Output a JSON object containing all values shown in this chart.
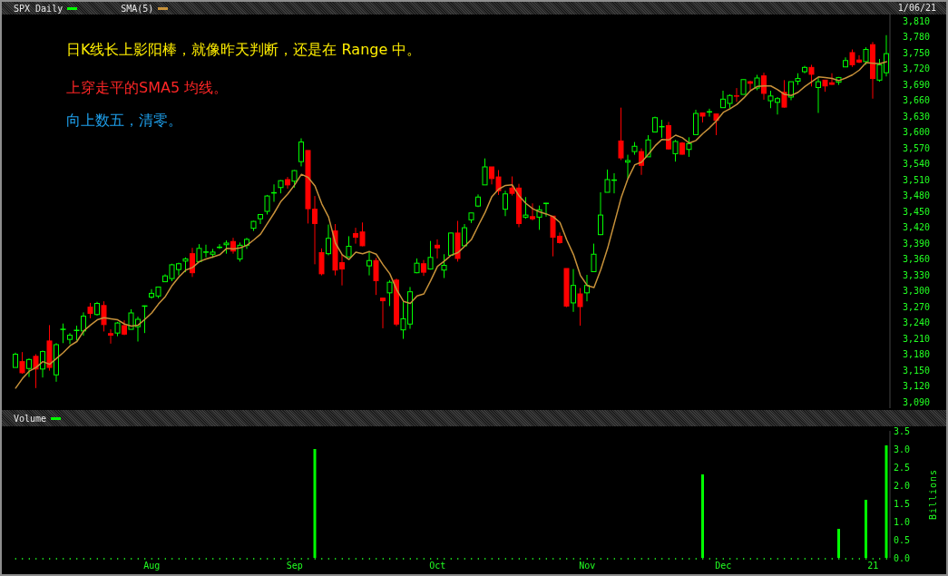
{
  "chart_data": [
    {
      "type": "candlestick",
      "subtitle": "1/06/21",
      "annotations": [
        "日K线长上影阳棒，就像昨天判断，还是在 Range 中。",
        "上穿走平的SMA5 均线。",
        "向上数五，清零。"
      ],
      "categories": [
        null,
        null,
        null,
        null,
        null,
        null,
        null,
        null,
        null,
        null,
        null,
        null,
        null,
        null,
        null,
        null,
        null,
        null,
        null,
        null,
        null,
        null,
        null,
        null,
        null,
        null,
        null,
        null,
        null,
        null,
        null,
        null,
        null,
        null,
        null,
        null,
        null,
        null,
        null,
        null,
        null,
        null,
        null,
        null,
        null,
        null,
        null,
        null,
        null,
        null,
        null,
        null,
        null,
        null,
        null,
        null,
        null,
        null,
        null,
        null,
        null,
        null,
        null,
        null,
        null,
        null,
        null,
        null,
        null,
        null,
        null,
        null,
        null,
        null,
        null,
        null,
        null,
        null,
        null,
        null,
        null,
        null,
        null,
        null,
        null,
        null,
        null,
        null,
        null,
        null,
        null,
        null,
        null,
        null,
        null,
        null,
        null,
        null,
        null,
        null,
        null,
        null,
        null,
        null,
        null,
        null,
        null,
        null,
        null,
        null,
        null,
        null,
        null,
        null,
        null,
        null,
        null,
        null,
        null,
        null,
        null,
        null,
        null,
        null,
        null,
        null,
        null,
        null,
        null
      ],
      "series": [
        {
          "name": "SPX Daily",
          "color": "#00ff00",
          "colors": [
            "#00ff00",
            "#ff0000",
            "#00ff00",
            "#ff0000",
            "#00ff00",
            "#ff0000",
            "#00ff00",
            "#00ff00",
            "#00ff00",
            "#00ff00",
            "#00ff00",
            "#ff0000",
            "#00ff00",
            "#ff0000",
            "#ff0000",
            "#00ff00",
            "#ff0000",
            "#00ff00",
            "#00ff00",
            "#00ff00",
            "#00ff00",
            "#00ff00",
            "#00ff00",
            "#00ff00",
            "#00ff00",
            "#00ff00",
            "#ff0000",
            "#00ff00",
            "#00ff00",
            "#00ff00",
            "#00ff00",
            "#00ff00",
            "#ff0000",
            "#00ff00",
            "#00ff00",
            "#00ff00",
            "#00ff00",
            "#00ff00",
            "#00ff00",
            "#00ff00",
            "#ff0000",
            "#00ff00",
            "#00ff00",
            "#ff0000",
            "#ff0000",
            "#ff0000",
            "#00ff00",
            "#ff0000",
            "#ff0000",
            "#00ff00",
            "#ff0000",
            "#ff0000",
            "#00ff00",
            "#ff0000",
            "#ff0000",
            "#00ff00",
            "#ff0000",
            "#00ff00",
            "#00ff00",
            "#00ff00",
            "#ff0000",
            "#00ff00",
            "#ff0000",
            "#00ff00",
            "#00ff00",
            "#ff0000",
            "#00ff00",
            "#00ff00",
            "#00ff00",
            "#00ff00",
            "#ff0000",
            "#ff0000",
            "#00ff00",
            "#ff0000",
            "#ff0000",
            "#00ff00",
            "#ff0000",
            "#00ff00",
            "#00ff00",
            "#ff0000",
            "#ff0000",
            "#ff0000",
            "#00ff00",
            "#ff0000",
            "#00ff00",
            "#00ff00",
            "#00ff00",
            "#00ff00",
            "#00ff00",
            "#ff0000",
            "#00ff00",
            "#00ff00",
            "#ff0000",
            "#00ff00",
            "#00ff00",
            "#00ff00",
            "#ff0000",
            "#00ff00",
            "#ff0000",
            "#00ff00",
            "#00ff00",
            "#ff0000",
            "#00ff00",
            "#ff0000",
            "#00ff00",
            "#00ff00",
            "#ff0000",
            "#00ff00",
            "#ff0000",
            "#00ff00",
            "#ff0000",
            "#00ff00",
            "#00ff00",
            "#ff0000",
            "#00ff00",
            "#00ff00",
            "#00ff00",
            "#ff0000",
            "#00ff00",
            "#ff0000",
            "#ff0000",
            "#00ff00",
            "#00ff00",
            "#ff0000",
            "#ff0000",
            "#00ff00",
            "#ff0000",
            "#00ff00",
            "#00ff00"
          ],
          "ohlc": [
            [
              3155,
              3183,
              3155,
              3180
            ],
            [
              3166,
              3184,
              3143,
              3145
            ],
            [
              3153,
              3172,
              3137,
              3170
            ],
            [
              3176,
              3180,
              3116,
              3152
            ],
            [
              3152,
              3187,
              3136,
              3185
            ],
            [
              3205,
              3235,
              3149,
              3155
            ],
            [
              3141,
              3201,
              3128,
              3198
            ],
            [
              3226,
              3238,
              3201,
              3227
            ],
            [
              3208,
              3220,
              3199,
              3216
            ],
            [
              3224,
              3234,
              3206,
              3225
            ],
            [
              3224,
              3259,
              3215,
              3252
            ],
            [
              3269,
              3277,
              3248,
              3257
            ],
            [
              3255,
              3279,
              3253,
              3276
            ],
            [
              3272,
              3280,
              3223,
              3236
            ],
            [
              3219,
              3227,
              3200,
              3216
            ],
            [
              3220,
              3241,
              3214,
              3239
            ],
            [
              3234,
              3244,
              3216,
              3218
            ],
            [
              3227,
              3265,
              3227,
              3258
            ],
            [
              3232,
              3251,
              3204,
              3246
            ],
            [
              3270,
              3272,
              3220,
              3271
            ],
            [
              3288,
              3303,
              3285,
              3295
            ],
            [
              3290,
              3307,
              3286,
              3307
            ],
            [
              3317,
              3331,
              3317,
              3328
            ],
            [
              3323,
              3351,
              3318,
              3349
            ],
            [
              3340,
              3353,
              3329,
              3351
            ],
            [
              3356,
              3363,
              3335,
              3360
            ],
            [
              3370,
              3381,
              3326,
              3334
            ],
            [
              3355,
              3388,
              3355,
              3380
            ],
            [
              3373,
              3387,
              3363,
              3373
            ],
            [
              3369,
              3379,
              3362,
              3373
            ],
            [
              3381,
              3388,
              3379,
              3382
            ],
            [
              3387,
              3395,
              3370,
              3390
            ],
            [
              3393,
              3400,
              3370,
              3375
            ],
            [
              3360,
              3391,
              3355,
              3386
            ],
            [
              3386,
              3400,
              3379,
              3397
            ],
            [
              3418,
              3432,
              3413,
              3431
            ],
            [
              3436,
              3444,
              3426,
              3444
            ],
            [
              3450,
              3481,
              3444,
              3479
            ],
            [
              3485,
              3501,
              3468,
              3485
            ],
            [
              3495,
              3509,
              3484,
              3508
            ],
            [
              3510,
              3515,
              3493,
              3500
            ],
            [
              3507,
              3528,
              3495,
              3527
            ],
            [
              3544,
              3588,
              3535,
              3581
            ],
            [
              3565,
              3565,
              3427,
              3455
            ],
            [
              3454,
              3479,
              3350,
              3427
            ],
            [
              3372,
              3380,
              3329,
              3332
            ],
            [
              3370,
              3425,
              3367,
              3399
            ],
            [
              3413,
              3426,
              3329,
              3339
            ],
            [
              3353,
              3369,
              3310,
              3341
            ],
            [
              3364,
              3403,
              3364,
              3384
            ],
            [
              3408,
              3419,
              3389,
              3401
            ],
            [
              3411,
              3429,
              3384,
              3385
            ],
            [
              3347,
              3375,
              3329,
              3357
            ],
            [
              3357,
              3362,
              3292,
              3319
            ],
            [
              3286,
              3286,
              3229,
              3281
            ],
            [
              3296,
              3320,
              3271,
              3316
            ],
            [
              3320,
              3323,
              3233,
              3237
            ],
            [
              3226,
              3279,
              3209,
              3247
            ],
            [
              3237,
              3307,
              3228,
              3298
            ],
            [
              3334,
              3361,
              3333,
              3352
            ],
            [
              3351,
              3358,
              3328,
              3335
            ],
            [
              3341,
              3394,
              3340,
              3363
            ],
            [
              3386,
              3397,
              3361,
              3381
            ],
            [
              3339,
              3369,
              3324,
              3348
            ],
            [
              3367,
              3410,
              3367,
              3409
            ],
            [
              3409,
              3432,
              3355,
              3361
            ],
            [
              3385,
              3426,
              3385,
              3419
            ],
            [
              3434,
              3447,
              3428,
              3447
            ],
            [
              3460,
              3482,
              3458,
              3477
            ],
            [
              3500,
              3550,
              3500,
              3534
            ],
            [
              3534,
              3534,
              3501,
              3512
            ],
            [
              3515,
              3528,
              3481,
              3489
            ],
            [
              3454,
              3489,
              3441,
              3483
            ],
            [
              3494,
              3516,
              3480,
              3484
            ],
            [
              3494,
              3502,
              3420,
              3427
            ],
            [
              3439,
              3477,
              3436,
              3443
            ],
            [
              3440,
              3465,
              3433,
              3436
            ],
            [
              3439,
              3461,
              3415,
              3453
            ],
            [
              3465,
              3466,
              3440,
              3465
            ],
            [
              3441,
              3441,
              3365,
              3401
            ],
            [
              3403,
              3410,
              3389,
              3391
            ],
            [
              3342,
              3342,
              3269,
              3271
            ],
            [
              3277,
              3341,
              3260,
              3310
            ],
            [
              3294,
              3305,
              3234,
              3270
            ],
            [
              3296,
              3330,
              3280,
              3310
            ],
            [
              3336,
              3389,
              3336,
              3369
            ],
            [
              3406,
              3486,
              3405,
              3443
            ],
            [
              3486,
              3529,
              3486,
              3510
            ],
            [
              3508,
              3522,
              3484,
              3509
            ],
            [
              3583,
              3646,
              3547,
              3551
            ],
            [
              3543,
              3557,
              3512,
              3546
            ],
            [
              3563,
              3581,
              3557,
              3573
            ],
            [
              3563,
              3569,
              3519,
              3537
            ],
            [
              3553,
              3594,
              3553,
              3585
            ],
            [
              3600,
              3629,
              3600,
              3627
            ],
            [
              3610,
              3623,
              3589,
              3610
            ],
            [
              3612,
              3619,
              3567,
              3568
            ],
            [
              3559,
              3585,
              3544,
              3582
            ],
            [
              3579,
              3581,
              3557,
              3558
            ],
            [
              3567,
              3590,
              3553,
              3578
            ],
            [
              3595,
              3642,
              3595,
              3635
            ],
            [
              3636,
              3636,
              3618,
              3630
            ],
            [
              3638,
              3644,
              3629,
              3638
            ],
            [
              3634,
              3634,
              3594,
              3622
            ],
            [
              3646,
              3678,
              3646,
              3662
            ],
            [
              3654,
              3671,
              3645,
              3669
            ],
            [
              3668,
              3683,
              3657,
              3667
            ],
            [
              3671,
              3699,
              3671,
              3699
            ],
            [
              3695,
              3697,
              3679,
              3692
            ],
            [
              3683,
              3708,
              3679,
              3702
            ],
            [
              3706,
              3712,
              3661,
              3673
            ],
            [
              3659,
              3678,
              3645,
              3668
            ],
            [
              3656,
              3666,
              3633,
              3663
            ],
            [
              3675,
              3698,
              3646,
              3647
            ],
            [
              3666,
              3695,
              3660,
              3695
            ],
            [
              3696,
              3711,
              3689,
              3701
            ],
            [
              3714,
              3725,
              3711,
              3722
            ],
            [
              3722,
              3727,
              3686,
              3709
            ],
            [
              3684,
              3703,
              3636,
              3695
            ],
            [
              3698,
              3698,
              3676,
              3687
            ],
            [
              3693,
              3711,
              3689,
              3690
            ],
            [
              3694,
              3704,
              3689,
              3703
            ],
            [
              3723,
              3741,
              3723,
              3735
            ],
            [
              3750,
              3756,
              3723,
              3727
            ],
            [
              3736,
              3745,
              3730,
              3732
            ],
            [
              3733,
              3760,
              3727,
              3756
            ],
            [
              3765,
              3770,
              3663,
              3701
            ],
            [
              3698,
              3738,
              3695,
              3727
            ],
            [
              3712,
              3783,
              3705,
              3748
            ]
          ]
        },
        {
          "name": "SMA(5)",
          "type": "line",
          "color": "#c8923a",
          "values": [
            3116,
            3134,
            3148,
            3155,
            3166,
            3161,
            3172,
            3183,
            3196,
            3204,
            3224,
            3235,
            3245,
            3249,
            3247,
            3245,
            3237,
            3233,
            3235,
            3246,
            3258,
            3275,
            3289,
            3310,
            3326,
            3339,
            3344,
            3355,
            3360,
            3364,
            3368,
            3380,
            3379,
            3381,
            3386,
            3396,
            3407,
            3427,
            3447,
            3469,
            3483,
            3500,
            3520,
            3514,
            3498,
            3464,
            3439,
            3390,
            3368,
            3359,
            3373,
            3370,
            3374,
            3369,
            3349,
            3332,
            3302,
            3280,
            3276,
            3290,
            3294,
            3319,
            3346,
            3356,
            3367,
            3372,
            3384,
            3397,
            3423,
            3448,
            3478,
            3492,
            3499,
            3500,
            3479,
            3465,
            3455,
            3449,
            3445,
            3440,
            3429,
            3396,
            3368,
            3329,
            3310,
            3306,
            3340,
            3380,
            3428,
            3476,
            3512,
            3538,
            3543,
            3558,
            3574,
            3586,
            3585,
            3594,
            3589,
            3579,
            3584,
            3597,
            3608,
            3621,
            3637,
            3644,
            3652,
            3664,
            3678,
            3686,
            3687,
            3687,
            3680,
            3671,
            3669,
            3675,
            3686,
            3695,
            3704,
            3703,
            3701,
            3697,
            3702,
            3708,
            3717,
            3731,
            3730,
            3729,
            3733
          ]
        }
      ],
      "ylim": [
        3078,
        3822
      ],
      "yticks": [
        {
          "value": 3090,
          "label": "3,090"
        },
        {
          "value": 3120,
          "label": "3,120"
        },
        {
          "value": 3150,
          "label": "3,150"
        },
        {
          "value": 3180,
          "label": "3,180"
        },
        {
          "value": 3210,
          "label": "3,210"
        },
        {
          "value": 3240,
          "label": "3,240"
        },
        {
          "value": 3270,
          "label": "3,270"
        },
        {
          "value": 3300,
          "label": "3,300"
        },
        {
          "value": 3330,
          "label": "3,330"
        },
        {
          "value": 3360,
          "label": "3,360"
        },
        {
          "value": 3390,
          "label": "3,390"
        },
        {
          "value": 3420,
          "label": "3,420"
        },
        {
          "value": 3450,
          "label": "3,450"
        },
        {
          "value": 3480,
          "label": "3,480"
        },
        {
          "value": 3510,
          "label": "3,510"
        },
        {
          "value": 3540,
          "label": "3,540"
        },
        {
          "value": 3570,
          "label": "3,570"
        },
        {
          "value": 3600,
          "label": "3,600"
        },
        {
          "value": 3630,
          "label": "3,630"
        },
        {
          "value": 3660,
          "label": "3,660"
        },
        {
          "value": 3690,
          "label": "3,690"
        },
        {
          "value": 3720,
          "label": "3,720"
        },
        {
          "value": 3750,
          "label": "3,750"
        },
        {
          "value": 3780,
          "label": "3,780"
        },
        {
          "value": 3810,
          "label": "3,810"
        }
      ],
      "legend": "top left",
      "tick_labels": "y"
    },
    {
      "type": "bar",
      "ylabel": "Billions",
      "categories": [
        null,
        null,
        null,
        null,
        null,
        null,
        null,
        null,
        null,
        null,
        null,
        null,
        null,
        null,
        null,
        null,
        null,
        null,
        null,
        null,
        "Aug",
        null,
        null,
        null,
        null,
        null,
        null,
        null,
        null,
        null,
        null,
        null,
        null,
        null,
        null,
        null,
        null,
        null,
        null,
        null,
        null,
        "Sep",
        null,
        null,
        null,
        null,
        null,
        null,
        null,
        null,
        null,
        null,
        null,
        null,
        null,
        null,
        null,
        null,
        null,
        null,
        null,
        null,
        "Oct",
        null,
        null,
        null,
        null,
        null,
        null,
        null,
        null,
        null,
        null,
        null,
        null,
        null,
        null,
        null,
        null,
        null,
        null,
        null,
        null,
        null,
        "Nov",
        null,
        null,
        null,
        null,
        null,
        null,
        null,
        null,
        null,
        null,
        null,
        null,
        null,
        null,
        null,
        null,
        null,
        null,
        null,
        "Dec",
        null,
        null,
        null,
        null,
        null,
        null,
        null,
        null,
        null,
        null,
        null,
        null,
        null,
        null,
        null,
        null,
        null,
        null,
        null,
        null,
        null,
        "21",
        null,
        null
      ],
      "series": [
        {
          "name": "Volume",
          "color": "#00ff00",
          "values": [
            null,
            null,
            null,
            null,
            null,
            null,
            null,
            null,
            null,
            null,
            null,
            null,
            null,
            null,
            null,
            null,
            null,
            null,
            null,
            null,
            null,
            null,
            null,
            null,
            null,
            null,
            null,
            null,
            null,
            null,
            null,
            null,
            null,
            null,
            null,
            null,
            null,
            null,
            null,
            null,
            null,
            null,
            null,
            null,
            3,
            null,
            null,
            null,
            null,
            null,
            null,
            null,
            null,
            null,
            null,
            null,
            null,
            null,
            null,
            null,
            null,
            null,
            null,
            null,
            null,
            null,
            null,
            null,
            null,
            null,
            null,
            null,
            null,
            null,
            null,
            null,
            null,
            null,
            null,
            null,
            null,
            null,
            null,
            null,
            null,
            null,
            null,
            null,
            null,
            null,
            null,
            null,
            null,
            null,
            null,
            null,
            null,
            null,
            null,
            null,
            null,
            2.3,
            null,
            null,
            null,
            null,
            null,
            null,
            null,
            null,
            null,
            null,
            null,
            null,
            null,
            null,
            null,
            null,
            null,
            null,
            null,
            0.8,
            null,
            null,
            null,
            1.6,
            null,
            null,
            3.1
          ]
        }
      ],
      "ylim": [
        0,
        3.5
      ],
      "yticks": [
        {
          "value": 0,
          "label": "0.0"
        },
        0.5,
        {
          "value": 1,
          "label": "1.0"
        },
        1.5,
        {
          "value": 2,
          "label": "2.0"
        },
        2.5,
        {
          "value": 3,
          "label": "3.0"
        },
        3.5
      ],
      "legend": "top left"
    }
  ]
}
